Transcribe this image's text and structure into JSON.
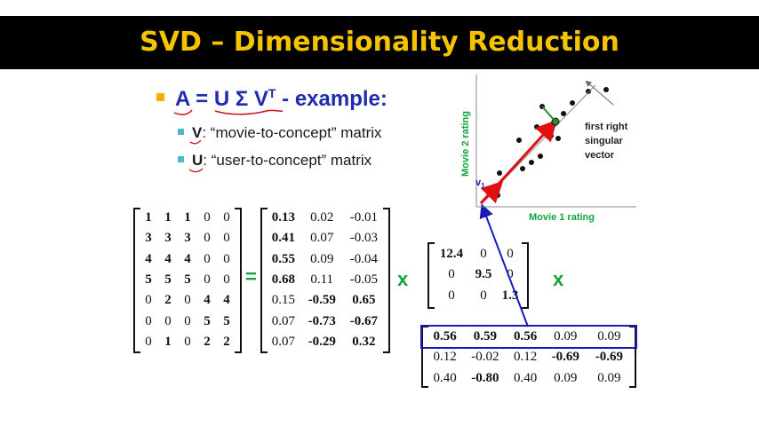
{
  "slide": {
    "title": "SVD – Dimensionality Reduction"
  },
  "bullets": {
    "main": {
      "a": "A",
      "eq": " = ",
      "u": "U",
      "sigma": " Σ ",
      "v": "V",
      "sup": "T",
      "rest": " - example:"
    },
    "sub": [
      {
        "key": "V",
        "text": ": “movie-to-concept” matrix"
      },
      {
        "key": "U",
        "text": ": “user-to-concept” matrix"
      }
    ]
  },
  "matrices": {
    "A": [
      [
        "1",
        "1",
        "1",
        "0",
        "0"
      ],
      [
        "3",
        "3",
        "3",
        "0",
        "0"
      ],
      [
        "4",
        "4",
        "4",
        "0",
        "0"
      ],
      [
        "5",
        "5",
        "5",
        "0",
        "0"
      ],
      [
        "0",
        "2",
        "0",
        "4",
        "4"
      ],
      [
        "0",
        "0",
        "0",
        "5",
        "5"
      ],
      [
        "0",
        "1",
        "0",
        "2",
        "2"
      ]
    ],
    "U": [
      [
        "0.13",
        "0.02",
        "-0.01"
      ],
      [
        "0.41",
        "0.07",
        "-0.03"
      ],
      [
        "0.55",
        "0.09",
        "-0.04"
      ],
      [
        "0.68",
        "0.11",
        "-0.05"
      ],
      [
        "0.15",
        "-0.59",
        "0.65"
      ],
      [
        "0.07",
        "-0.73",
        "-0.67"
      ],
      [
        "0.07",
        "-0.29",
        "0.32"
      ]
    ],
    "Sigma": [
      [
        "12.4",
        "0",
        "0"
      ],
      [
        "0",
        "9.5",
        "0"
      ],
      [
        "0",
        "0",
        "1.3"
      ]
    ],
    "VT": [
      [
        "0.56",
        "0.59",
        "0.56",
        "0.09",
        "0.09"
      ],
      [
        "0.12",
        "-0.02",
        "0.12",
        "-0.69",
        "-0.69"
      ],
      [
        "0.40",
        "-0.80",
        "0.40",
        "0.09",
        "0.09"
      ]
    ]
  },
  "operators": {
    "equals": "=",
    "times": "x"
  },
  "scatter": {
    "ylabel": "Movie 2 rating",
    "xlabel": "Movie 1 rating",
    "vector_label": "v",
    "vector_sub": "1",
    "annotation": [
      "first right",
      "singular",
      "vector"
    ]
  },
  "colors": {
    "title": "#f5c400",
    "bullet_blue": "#1f2bb0",
    "axis_green": "#12a33c",
    "arrow_red": "#e01010",
    "connector_blue": "#1a1ab8",
    "ink_red": "#d01010"
  }
}
